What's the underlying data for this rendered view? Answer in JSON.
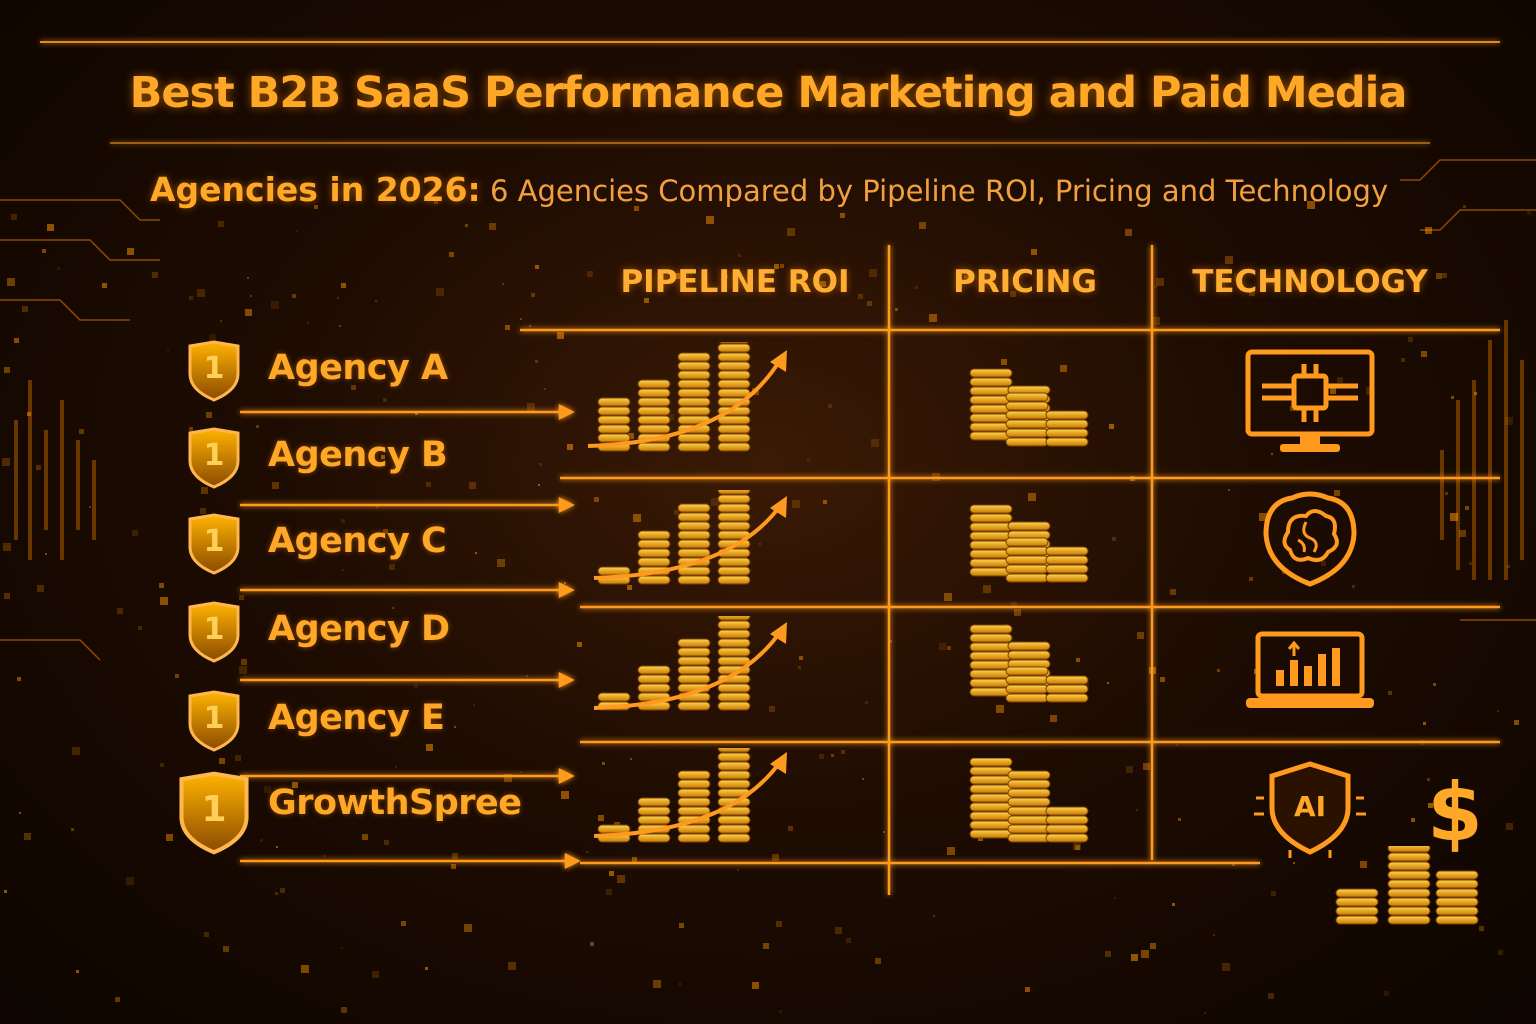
{
  "title": "Best B2B SaaS Performance Marketing and Paid Media",
  "subtitle": {
    "lead": "Agencies in 2026:",
    "rest": " 6 Agencies Compared by Pipeline ROI, Pricing and Technology"
  },
  "columns": [
    "PIPELINE ROI",
    "PRICING",
    "TECHNOLOGY"
  ],
  "agencies": [
    {
      "rank": "1",
      "name": "Agency A"
    },
    {
      "rank": "1",
      "name": "Agency B"
    },
    {
      "rank": "1",
      "name": "Agency C"
    },
    {
      "rank": "1",
      "name": "Agency D"
    },
    {
      "rank": "1",
      "name": "Agency E"
    },
    {
      "rank": "1",
      "name": "GrowthSpree"
    }
  ],
  "technology_icons": [
    "monitor-chip-icon",
    "brain-icon",
    "laptop-chart-icon",
    "ai-shield-icon"
  ],
  "tech_ai_label": "AI",
  "dollar_glyph": "$",
  "colors": {
    "accent": "#ffa726",
    "line": "#ff9a1f",
    "background": "#1e0c02"
  }
}
